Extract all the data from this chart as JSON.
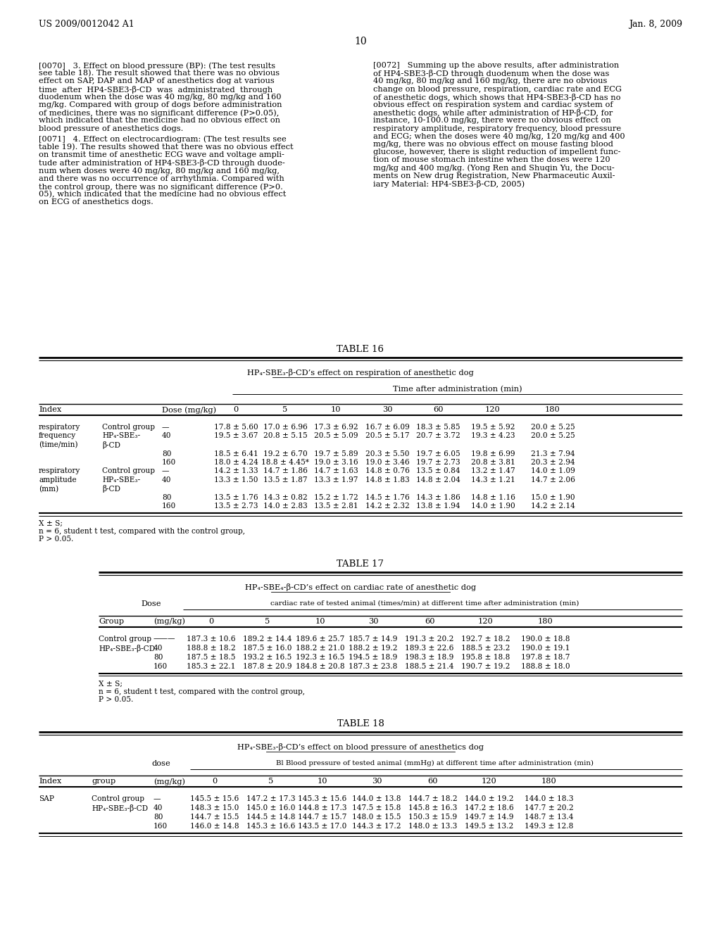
{
  "header_left": "US 2009/0012042 A1",
  "header_right": "Jan. 8, 2009",
  "page_number": "10",
  "background_color": "#ffffff",
  "left_lines_0070": [
    "[0070]   3. Effect on blood pressure (BP): (The test results",
    "see table 18). The result showed that there was no obvious",
    "effect on SAP, DAP and MAP of anesthetics dog at various",
    "time  after  HP4-SBE3-β-CD  was  administrated  through",
    "duodenum when the dose was 40 mg/kg, 80 mg/kg and 160",
    "mg/kg. Compared with group of dogs before administration",
    "of medicines, there was no significant difference (P>0.05),",
    "which indicated that the medicine had no obvious effect on",
    "blood pressure of anesthetics dogs."
  ],
  "left_lines_0071": [
    "[0071]   4. Effect on electrocardiogram: (The test results see",
    "table 19). The results showed that there was no obvious effect",
    "on transmit time of anesthetic ECG wave and voltage ampli-",
    "tude after administration of HP4-SBE3-β-CD through duode-",
    "num when doses were 40 mg/kg, 80 mg/kg and 160 mg/kg,",
    "and there was no occurrence of arrhythmia. Compared with",
    "the control group, there was no significant difference (P>0.",
    "05), which indicated that the medicine had no obvious effect",
    "on ECG of anesthetics dogs."
  ],
  "right_lines_0072": [
    "[0072]   Summing up the above results, after administration",
    "of HP4-SBE3-β-CD through duodenum when the dose was",
    "40 mg/kg, 80 mg/kg and 160 mg/kg, there are no obvious",
    "change on blood pressure, respiration, cardiac rate and ECG",
    "of anesthetic dogs, which shows that HP4-SBE3-β-CD has no",
    "obvious effect on respiration system and cardiac system of",
    "anesthetic dogs, while after administration of HP-β-CD, for",
    "instance, 10-100.0 mg/kg, there were no obvious effect on",
    "respiratory amplitude, respiratory frequency, blood pressure",
    "and ECG; when the doses were 40 mg/kg, 120 mg/kg and 400",
    "mg/kg, there was no obvious effect on mouse fasting blood",
    "glucose, however, there is slight reduction of impellent func-",
    "tion of mouse stomach intestine when the doses were 120",
    "mg/kg and 400 mg/kg. (Yong Ren and Shuqin Yu, the Docu-",
    "ments on New drug Registration, New Pharmaceutic Auxil-",
    "iary Material: HP4-SBE3-β-CD, 2005)"
  ],
  "table16_title": "TABLE 16",
  "table16_subtitle": "HP₄-SBE₃-β-CD’s effect on respiration of anesthetic dog",
  "table16_time_header": "Time after administration (min)",
  "table16_col_headers": [
    "Index",
    "",
    "Dose (mg/kg)",
    "0",
    "5",
    "10",
    "30",
    "60",
    "120",
    "180"
  ],
  "table16_rows": [
    [
      "respiratory",
      "Control group",
      "—",
      "17.8 ± 5.60",
      "17.0 ± 6.96",
      "17.3 ± 6.92",
      "16.7 ± 6.09",
      "18.3 ± 5.85",
      "19.5 ± 5.92",
      "20.0 ± 5.25"
    ],
    [
      "frequency",
      "HP₄-SBE₃-",
      "40",
      "19.5 ± 3.67",
      "20.8 ± 5.15",
      "20.5 ± 5.09",
      "20.5 ± 5.17",
      "20.7 ± 3.72",
      "19.3 ± 4.23",
      "20.0 ± 5.25"
    ],
    [
      "(time/min)",
      "β-CD",
      "",
      "",
      "",
      "",
      "",
      "",
      "",
      ""
    ],
    [
      "",
      "",
      "80",
      "18.5 ± 6.41",
      "19.2 ± 6.70",
      "19.7 ± 5.89",
      "20.3 ± 5.50",
      "19.7 ± 6.05",
      "19.8 ± 6.99",
      "21.3 ± 7.94"
    ],
    [
      "",
      "",
      "160",
      "18.0 ± 4.24",
      "18.8 ± 4.45*",
      "19.0 ± 3.16",
      "19.0 ± 3.46",
      "19.7 ± 2.73",
      "20.8 ± 3.81",
      "20.3 ± 2.94"
    ],
    [
      "respiratory",
      "Control group",
      "—",
      "14.2 ± 1.33",
      "14.7 ± 1.86",
      "14.7 ± 1.63",
      "14.8 ± 0.76",
      "13.5 ± 0.84",
      "13.2 ± 1.47",
      "14.0 ± 1.09"
    ],
    [
      "amplitude",
      "HP₄-SBE₃-",
      "40",
      "13.3 ± 1.50",
      "13.5 ± 1.87",
      "13.3 ± 1.97",
      "14.8 ± 1.83",
      "14.8 ± 2.04",
      "14.3 ± 1.21",
      "14.7 ± 2.06"
    ],
    [
      "(mm)",
      "β-CD",
      "",
      "",
      "",
      "",
      "",
      "",
      "",
      ""
    ],
    [
      "",
      "",
      "80",
      "13.5 ± 1.76",
      "14.3 ± 0.82",
      "15.2 ± 1.72",
      "14.5 ± 1.76",
      "14.3 ± 1.86",
      "14.8 ± 1.16",
      "15.0 ± 1.90"
    ],
    [
      "",
      "",
      "160",
      "13.5 ± 2.73",
      "14.0 ± 2.83",
      "13.5 ± 2.81",
      "14.2 ± 2.32",
      "13.8 ± 1.94",
      "14.0 ± 1.90",
      "14.2 ± 2.14"
    ]
  ],
  "table16_footnotes": [
    "X ± S;",
    "n = 6, student t test, compared with the control group,",
    "P > 0.05."
  ],
  "table17_title": "TABLE 17",
  "table17_subtitle": "HP₄-SBE₄-β-CD’s effect on cardiac rate of anesthetic dog",
  "table17_dose_label": "Dose",
  "table17_cardiac_header": "cardiac rate of tested animal (times/min) at different time after administration (min)",
  "table17_col_headers": [
    "Group",
    "(mg/kg)",
    "0",
    "5",
    "10",
    "30",
    "60",
    "120",
    "180"
  ],
  "table17_rows": [
    [
      "Control group",
      "———",
      "187.3 ± 10.6",
      "189.2 ± 14.4",
      "189.6 ± 25.7",
      "185.7 ± 14.9",
      "191.3 ± 20.2",
      "192.7 ± 18.2",
      "190.0 ± 18.8"
    ],
    [
      "HP₄-SBE₃-β-CD",
      "40",
      "188.8 ± 18.2",
      "187.5 ± 16.0",
      "188.2 ± 21.0",
      "188.2 ± 19.2",
      "189.3 ± 22.6",
      "188.5 ± 23.2",
      "190.0 ± 19.1"
    ],
    [
      "",
      "80",
      "187.5 ± 18.5",
      "193.2 ± 16.5",
      "192.3 ± 16.5",
      "194.5 ± 18.9",
      "198.3 ± 18.9",
      "195.8 ± 18.8",
      "197.8 ± 18.7"
    ],
    [
      "",
      "160",
      "185.3 ± 22.1",
      "187.8 ± 20.9",
      "184.8 ± 20.8",
      "187.3 ± 23.8",
      "188.5 ± 21.4",
      "190.7 ± 19.2",
      "188.8 ± 18.0"
    ]
  ],
  "table17_footnotes": [
    "X ± S;",
    "n = 6, student t test, compared with the control group,",
    "P > 0.05."
  ],
  "table18_title": "TABLE 18",
  "table18_subtitle": "HP₄-SBE₃-β-CD’s effect on blood pressure of anesthetics dog",
  "table18_dose_label": "dose",
  "table18_bp_header": "Bl Blood pressure of tested animal (mmHg) at different time after administration (min)",
  "table18_col_headers": [
    "Index",
    "group",
    "(mg/kg)",
    "0",
    "5",
    "10",
    "30",
    "60",
    "120",
    "180"
  ],
  "table18_rows": [
    [
      "SAP",
      "Control group",
      "—",
      "145.5 ± 15.6",
      "147.2 ± 17.3",
      "145.3 ± 15.6",
      "144.0 ± 13.8",
      "144.7 ± 18.2",
      "144.0 ± 19.2",
      "144.0 ± 18.3"
    ],
    [
      "",
      "HP₄-SBE₃-β-CD",
      "40",
      "148.3 ± 15.0",
      "145.0 ± 16.0",
      "144.8 ± 17.3",
      "147.5 ± 15.8",
      "145.8 ± 16.3",
      "147.2 ± 18.6",
      "147.7 ± 20.2"
    ],
    [
      "",
      "",
      "80",
      "144.7 ± 15.5",
      "144.5 ± 14.8",
      "144.7 ± 15.7",
      "148.0 ± 15.5",
      "150.3 ± 15.9",
      "149.7 ± 14.9",
      "148.7 ± 13.4"
    ],
    [
      "",
      "",
      "160",
      "146.0 ± 14.8",
      "145.3 ± 16.6",
      "143.5 ± 17.0",
      "144.3 ± 17.2",
      "148.0 ± 13.3",
      "149.5 ± 13.2",
      "149.3 ± 12.8"
    ]
  ]
}
